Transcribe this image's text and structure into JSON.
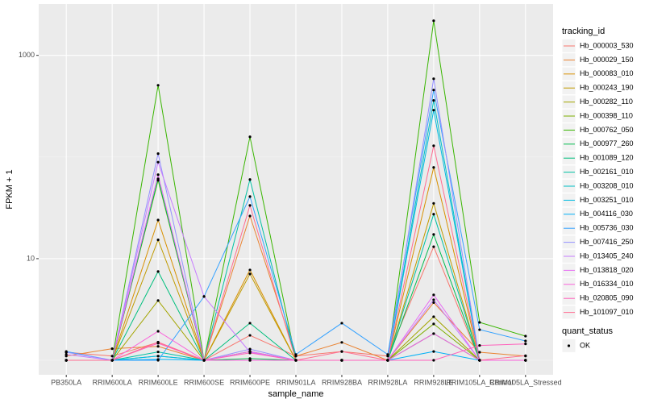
{
  "chart_data": {
    "type": "line",
    "x_label": "sample_name",
    "y_label": "FPKM + 1",
    "categories": [
      "PB350LA",
      "RRIM600LA",
      "RRIM600LE",
      "RRIM600SE",
      "RRIM600PE",
      "RRIM901LA",
      "RRIM928BA",
      "RRIM928LA",
      "RRIM928LE",
      "RRIM105LA_Control",
      "RRIM105LA_Stressed"
    ],
    "ylim": [
      0.72,
      3200
    ],
    "yticks": [
      10,
      1000
    ],
    "log_y": true,
    "grid": true,
    "legend_title": "tracking_id",
    "legend_position": "right",
    "point_legend_title": "quant_status",
    "point_legend_label": "OK",
    "point_color": "#000000",
    "series": [
      {
        "name": "Hb_000003_530",
        "color": "#F8766D",
        "values": [
          1.2,
          1.1,
          1.5,
          1.0,
          1.76,
          1.1,
          1.22,
          1.1,
          13.1,
          1.0,
          1.0
        ]
      },
      {
        "name": "Hb_000029_150",
        "color": "#EA8331",
        "values": [
          1.1,
          1.3,
          1.37,
          1.0,
          26.3,
          1.1,
          1.5,
          1.0,
          3.7,
          1.2,
          1.1
        ]
      },
      {
        "name": "Hb_000083_010",
        "color": "#D89000",
        "values": [
          1.0,
          1.0,
          24,
          1.0,
          7.74,
          1.0,
          1.0,
          1.0,
          79,
          1.0,
          1.0
        ]
      },
      {
        "name": "Hb_000243_190",
        "color": "#C09B00",
        "values": [
          1.0,
          1.0,
          15.3,
          1.0,
          7.07,
          1.0,
          1.0,
          1.0,
          35,
          1.0,
          1.0
        ]
      },
      {
        "name": "Hb_000282_110",
        "color": "#A3A500",
        "values": [
          1.0,
          1.0,
          3.87,
          1.0,
          1.0,
          1.0,
          1.0,
          1.0,
          2.68,
          1.0,
          1.0
        ]
      },
      {
        "name": "Hb_000398_110",
        "color": "#7CAE00",
        "values": [
          1.0,
          1.0,
          59,
          1.0,
          1.22,
          1.0,
          1.0,
          1.0,
          2.28,
          1.0,
          1.0
        ]
      },
      {
        "name": "Hb_000762_050",
        "color": "#39B600",
        "values": [
          1.0,
          1.0,
          508,
          1.0,
          158,
          1.0,
          1.0,
          1.0,
          2190,
          2.36,
          1.73
        ]
      },
      {
        "name": "Hb_000977_260",
        "color": "#00BB4E",
        "values": [
          1.0,
          1.0,
          61,
          1.0,
          1.04,
          1.0,
          1.0,
          1.0,
          17.3,
          1.0,
          1.0
        ]
      },
      {
        "name": "Hb_001089_120",
        "color": "#00BF7D",
        "values": [
          1.0,
          1.0,
          7.47,
          1.0,
          2.32,
          1.0,
          1.0,
          1.0,
          1.83,
          1.0,
          1.0
        ]
      },
      {
        "name": "Hb_002161_010",
        "color": "#00C1A3",
        "values": [
          1.0,
          1.0,
          1.21,
          1.0,
          60,
          1.0,
          1.0,
          1.0,
          27.4,
          1.0,
          1.0
        ]
      },
      {
        "name": "Hb_003208_010",
        "color": "#00BFC4",
        "values": [
          1.0,
          1.0,
          1.1,
          1.0,
          1.0,
          1.0,
          1.0,
          1.0,
          360,
          1.0,
          1.0
        ]
      },
      {
        "name": "Hb_003251_010",
        "color": "#00BAE0",
        "values": [
          1.0,
          1.0,
          1.1,
          1.0,
          1.0,
          1.0,
          1.0,
          1.0,
          289,
          1.0,
          1.0
        ]
      },
      {
        "name": "Hb_004116_030",
        "color": "#00B0F6",
        "values": [
          1.0,
          1.0,
          1.02,
          1.0,
          1.0,
          1.0,
          1.0,
          1.0,
          1.22,
          1.0,
          1.0
        ]
      },
      {
        "name": "Hb_005736_030",
        "color": "#35A2FF",
        "values": [
          1.22,
          1.0,
          1.0,
          4.24,
          40.8,
          1.14,
          2.32,
          1.14,
          456,
          2.0,
          1.55
        ]
      },
      {
        "name": "Hb_007416_250",
        "color": "#9590FF",
        "values": [
          1.2,
          1.0,
          108,
          1.0,
          1.29,
          1.0,
          1.0,
          1.0,
          589,
          1.0,
          1.0
        ]
      },
      {
        "name": "Hb_013405_240",
        "color": "#C77CFF",
        "values": [
          1.14,
          1.0,
          89,
          4.24,
          1.2,
          1.0,
          1.0,
          1.0,
          3.94,
          1.0,
          1.0
        ]
      },
      {
        "name": "Hb_013818_020",
        "color": "#E76BF3",
        "values": [
          1.0,
          1.0,
          67,
          1.0,
          1.22,
          1.0,
          1.0,
          1.0,
          4.4,
          1.0,
          1.0
        ]
      },
      {
        "name": "Hb_016334_010",
        "color": "#FA62DB",
        "values": [
          1.0,
          1.0,
          1.93,
          1.0,
          1.0,
          1.0,
          1.0,
          1.0,
          1.83,
          1.0,
          1.0
        ]
      },
      {
        "name": "Hb_020805_090",
        "color": "#FF62BC",
        "values": [
          1.0,
          1.0,
          1.47,
          1.0,
          1.18,
          1.0,
          1.0,
          1.0,
          1.0,
          1.4,
          1.45
        ]
      },
      {
        "name": "Hb_101097_010",
        "color": "#FF6C91",
        "values": [
          1.0,
          1.0,
          1.51,
          1.0,
          33.4,
          1.0,
          1.22,
          1.0,
          129,
          1.0,
          1.11
        ]
      }
    ]
  }
}
